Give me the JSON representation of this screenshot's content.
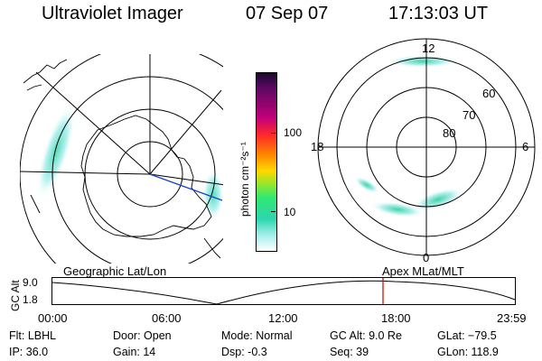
{
  "header": {
    "title": "Ultraviolet Imager",
    "date": "07 Sep 07",
    "time": "17:13:03 UT"
  },
  "left_panel": {
    "label": "Geographic Lat/Lon"
  },
  "right_panel": {
    "label": "Apex  MLat/MLT",
    "mlt_labels": {
      "top": "12",
      "left": "18",
      "right": "6",
      "bottom": "0"
    },
    "lat_labels": [
      "60",
      "70",
      "80"
    ]
  },
  "colorbar": {
    "unit": "photon cm⁻²s⁻¹",
    "ticks": [
      "100",
      "10"
    ],
    "colors": [
      "#1a0830",
      "#c0007a",
      "#ff7f00",
      "#ffd800",
      "#30e870",
      "#b0f0f0",
      "#ffffff"
    ]
  },
  "altitude_plot": {
    "ylabel": "GC Alt",
    "ytick_top": "9.0",
    "ytick_bottom": "1.8",
    "xticks": [
      "00:00",
      "06:00",
      "12:00",
      "18:00",
      "23:59"
    ],
    "marker_color": "#cc0000"
  },
  "status": {
    "flt": "Flt: LBHL",
    "ip": "IP: 36.0",
    "door": "Door: Open",
    "gain": "Gain: 14",
    "mode": "Mode: Normal",
    "dsp": "Dsp:    -0.3",
    "gc_alt": "GC Alt: 9.0 Re",
    "seq": "Seq: 39",
    "glat": "GLat: −79.5",
    "glon": "GLon: 118.9"
  }
}
